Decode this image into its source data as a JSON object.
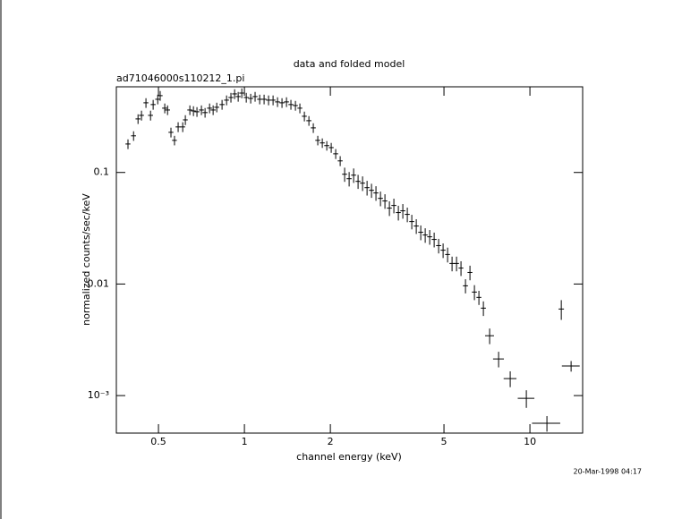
{
  "chart_data": {
    "type": "errorbar",
    "title": "data and folded model",
    "subtitle": "ad71046000s110212_1.pi",
    "x_label": "channel energy (keV)",
    "y_label": "normalized counts/sec/keV",
    "timestamp": "20-Mar-1998 04:17",
    "xscale": "log",
    "yscale": "log",
    "xlim": [
      0.356,
      15.3
    ],
    "ylim": [
      0.000461,
      0.586
    ],
    "xticks": [
      0.5,
      1,
      2,
      5,
      10
    ],
    "yticks": [
      0.1,
      0.01,
      {
        "value": 0.001,
        "label": "10⁻³"
      }
    ],
    "color": "#000000",
    "x": [
      0.391,
      0.409,
      0.424,
      0.436,
      0.452,
      0.469,
      0.479,
      0.497,
      0.507,
      0.526,
      0.538,
      0.553,
      0.569,
      0.586,
      0.608,
      0.621,
      0.644,
      0.663,
      0.682,
      0.707,
      0.728,
      0.755,
      0.777,
      0.8,
      0.835,
      0.866,
      0.897,
      0.924,
      0.951,
      0.979,
      1.015,
      1.052,
      1.09,
      1.131,
      1.172,
      1.215,
      1.26,
      1.306,
      1.354,
      1.404,
      1.455,
      1.509,
      1.564,
      1.622,
      1.682,
      1.743,
      1.807,
      1.874,
      1.943,
      2.014,
      2.088,
      2.165,
      2.244,
      2.327,
      2.413,
      2.501,
      2.593,
      2.689,
      2.787,
      2.889,
      2.996,
      3.106,
      3.22,
      3.338,
      3.461,
      3.588,
      3.72,
      3.857,
      3.999,
      4.146,
      4.298,
      4.456,
      4.62,
      4.789,
      4.965,
      5.148,
      5.337,
      5.533,
      5.736,
      5.947,
      6.166,
      6.392,
      6.627,
      6.871,
      7.226,
      7.768,
      8.531,
      9.716,
      11.47,
      12.88,
      13.94
    ],
    "xerr": [
      0.0078,
      0.0082,
      0.0085,
      0.0087,
      0.009,
      0.0094,
      0.0096,
      0.0099,
      0.01,
      0.011,
      0.011,
      0.011,
      0.011,
      0.012,
      0.012,
      0.012,
      0.013,
      0.013,
      0.014,
      0.014,
      0.015,
      0.015,
      0.016,
      0.016,
      0.017,
      0.017,
      0.018,
      0.018,
      0.019,
      0.02,
      0.02,
      0.021,
      0.022,
      0.023,
      0.023,
      0.024,
      0.025,
      0.026,
      0.027,
      0.028,
      0.029,
      0.03,
      0.031,
      0.032,
      0.034,
      0.035,
      0.036,
      0.037,
      0.039,
      0.04,
      0.042,
      0.043,
      0.045,
      0.047,
      0.048,
      0.05,
      0.052,
      0.054,
      0.056,
      0.058,
      0.06,
      0.062,
      0.064,
      0.067,
      0.069,
      0.072,
      0.074,
      0.077,
      0.08,
      0.083,
      0.086,
      0.089,
      0.092,
      0.096,
      0.099,
      0.1,
      0.11,
      0.11,
      0.11,
      0.12,
      0.12,
      0.13,
      0.13,
      0.14,
      0.26,
      0.34,
      0.44,
      0.65,
      1.3,
      0.28,
      1.0
    ],
    "values": [
      0.18,
      0.213,
      0.302,
      0.325,
      0.421,
      0.325,
      0.406,
      0.453,
      0.488,
      0.377,
      0.363,
      0.229,
      0.194,
      0.256,
      0.256,
      0.296,
      0.363,
      0.356,
      0.35,
      0.363,
      0.344,
      0.377,
      0.363,
      0.384,
      0.406,
      0.445,
      0.47,
      0.506,
      0.479,
      0.515,
      0.47,
      0.461,
      0.479,
      0.453,
      0.453,
      0.445,
      0.445,
      0.429,
      0.421,
      0.429,
      0.406,
      0.398,
      0.377,
      0.319,
      0.291,
      0.251,
      0.194,
      0.184,
      0.174,
      0.167,
      0.147,
      0.127,
      0.0964,
      0.0879,
      0.0946,
      0.0832,
      0.0802,
      0.0731,
      0.0692,
      0.0655,
      0.0586,
      0.0555,
      0.0479,
      0.0506,
      0.0437,
      0.0453,
      0.0421,
      0.0363,
      0.0331,
      0.0291,
      0.0275,
      0.0265,
      0.0251,
      0.0221,
      0.0201,
      0.0184,
      0.0153,
      0.0153,
      0.0139,
      0.00964,
      0.0127,
      0.00847,
      0.00759,
      0.00608,
      0.00344,
      0.00213,
      0.00142,
      0.000946,
      0.000565,
      0.00597,
      0.00184
    ],
    "yerr": [
      0.018,
      0.021,
      0.03,
      0.033,
      0.042,
      0.033,
      0.041,
      0.045,
      0.049,
      0.038,
      0.036,
      0.023,
      0.019,
      0.026,
      0.026,
      0.03,
      0.036,
      0.036,
      0.035,
      0.036,
      0.034,
      0.038,
      0.036,
      0.038,
      0.041,
      0.045,
      0.047,
      0.051,
      0.048,
      0.052,
      0.047,
      0.046,
      0.048,
      0.045,
      0.045,
      0.045,
      0.045,
      0.043,
      0.042,
      0.043,
      0.041,
      0.04,
      0.038,
      0.032,
      0.029,
      0.025,
      0.019,
      0.018,
      0.017,
      0.017,
      0.015,
      0.013,
      0.014,
      0.013,
      0.014,
      0.012,
      0.012,
      0.011,
      0.01,
      0.0098,
      0.0088,
      0.0083,
      0.0072,
      0.0076,
      0.0066,
      0.0068,
      0.0063,
      0.0054,
      0.005,
      0.0044,
      0.0041,
      0.004,
      0.0038,
      0.0033,
      0.003,
      0.0028,
      0.0023,
      0.0023,
      0.0021,
      0.0014,
      0.0019,
      0.0013,
      0.0011,
      0.00091,
      0.00055,
      0.00034,
      0.00023,
      0.00017,
      9e-05,
      0.0012,
      0.0002
    ]
  }
}
